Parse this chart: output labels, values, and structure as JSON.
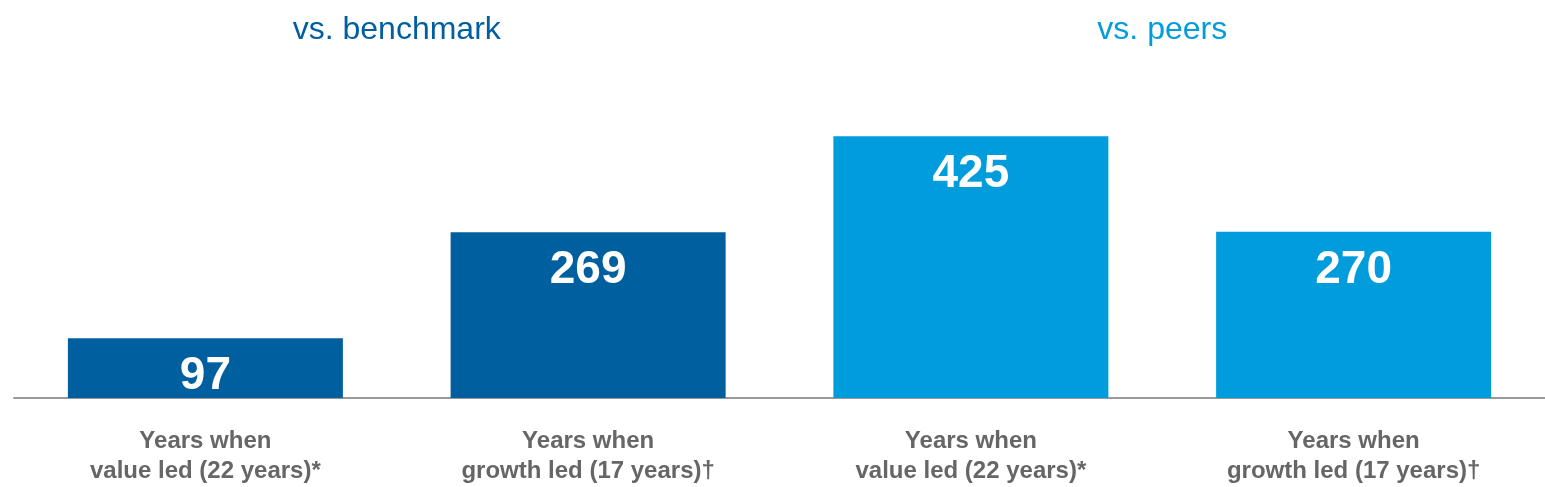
{
  "chart_data": {
    "type": "bar",
    "categories": [
      "Years when\nvalue led (22 years)*",
      "Years when\ngrowth led (17 years)†",
      "Years when\nvalue led (22 years)*",
      "Years when\ngrowth led (17 years)†"
    ],
    "series": [
      {
        "name": "vs. benchmark",
        "color": "#005f9e",
        "values": [
          97,
          269,
          null,
          null
        ]
      },
      {
        "name": "vs. peers",
        "color": "#009cdc",
        "values": [
          null,
          null,
          425,
          270
        ]
      }
    ],
    "data_labels": true,
    "grid": false,
    "legend": false
  }
}
